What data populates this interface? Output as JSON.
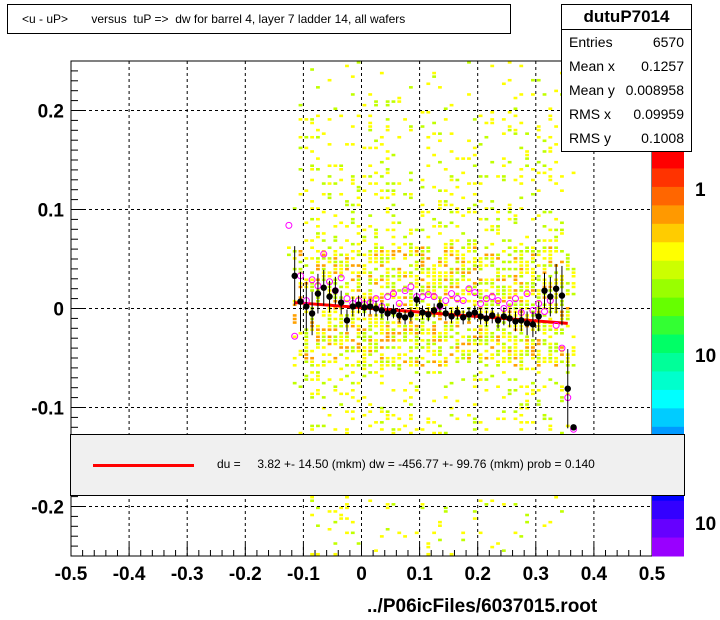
{
  "title": "<u - uP>       versus  tuP =>  dw for barrel 4, layer 7 ladder 14, all wafers",
  "stats": {
    "name": "dutuP7014",
    "rows": [
      {
        "label": "Entries",
        "value": "6570"
      },
      {
        "label": "Mean x",
        "value": "0.1257"
      },
      {
        "label": "Mean y",
        "value": "0.008958"
      },
      {
        "label": "RMS x",
        "value": "0.09959"
      },
      {
        "label": "RMS y",
        "value": "0.1008"
      }
    ]
  },
  "fit_legend": "du =     3.82 +- 14.50 (mkm) dw = -456.77 +- 99.76 (mkm) prob = 0.140",
  "file_label": "../P06icFiles/6037015.root",
  "palette_labels": [
    "1",
    "10",
    "10"
  ],
  "colors": {
    "scatter_yellow": "#ffff00",
    "scatter_green": "#c0ff00",
    "scatter_orange": "#ffa000",
    "profile_black": "#000000",
    "profile_magenta": "#ff00ff",
    "fit_red": "#ff0000"
  },
  "chart_data": {
    "type": "scatter",
    "title": "<u - uP>       versus  tuP =>  dw for barrel 4, layer 7 ladder 14, all wafers",
    "xlabel": "",
    "ylabel": "",
    "xlim": [
      -0.5,
      0.5
    ],
    "ylim": [
      -0.25,
      0.25
    ],
    "grid": true,
    "x_ticks": [
      -0.5,
      -0.4,
      -0.3,
      -0.2,
      -0.1,
      0,
      0.1,
      0.2,
      0.3,
      0.4,
      0.5
    ],
    "x_tick_labels": [
      "-0.5",
      "-0.4",
      "-0.3",
      "-0.2",
      "-0.1",
      "0",
      "0.1",
      "0.2",
      "0.3",
      "0.4",
      "0.5"
    ],
    "y_ticks": [
      0.2,
      0.1,
      0,
      -0.1,
      -0.2
    ],
    "y_tick_labels": [
      "0.2",
      "0.1",
      "0",
      "-0.1",
      "-0.2"
    ],
    "fit_line": {
      "x": [
        -0.115,
        0.355
      ],
      "y": [
        0.006,
        -0.015
      ]
    },
    "profile_black": {
      "name": "",
      "x": [
        -0.115,
        -0.105,
        -0.095,
        -0.085,
        -0.075,
        -0.065,
        -0.055,
        -0.045,
        -0.035,
        -0.025,
        -0.015,
        -0.005,
        0.005,
        0.015,
        0.025,
        0.035,
        0.045,
        0.055,
        0.065,
        0.075,
        0.085,
        0.095,
        0.105,
        0.115,
        0.125,
        0.135,
        0.145,
        0.155,
        0.165,
        0.175,
        0.185,
        0.195,
        0.205,
        0.215,
        0.225,
        0.235,
        0.245,
        0.255,
        0.265,
        0.275,
        0.285,
        0.295,
        0.305,
        0.315,
        0.325,
        0.335,
        0.345,
        0.355,
        0.365
      ],
      "y": [
        0.033,
        0.007,
        0.002,
        -0.005,
        0.015,
        0.021,
        0.012,
        0.018,
        0.006,
        -0.012,
        0.002,
        0.004,
        0.001,
        0.002,
        0.0,
        -0.002,
        -0.005,
        -0.003,
        -0.007,
        -0.009,
        -0.006,
        0.009,
        -0.004,
        -0.006,
        -0.002,
        0.003,
        -0.005,
        -0.008,
        -0.004,
        -0.009,
        -0.006,
        -0.004,
        -0.008,
        -0.01,
        -0.007,
        -0.012,
        -0.008,
        -0.01,
        -0.013,
        -0.012,
        -0.015,
        -0.016,
        -0.008,
        0.018,
        0.012,
        0.02,
        0.013,
        -0.081,
        -0.12
      ],
      "yerr": [
        0.03,
        0.03,
        0.025,
        0.022,
        0.02,
        0.018,
        0.016,
        0.014,
        0.012,
        0.011,
        0.01,
        0.009,
        0.009,
        0.008,
        0.008,
        0.008,
        0.007,
        0.007,
        0.007,
        0.007,
        0.007,
        0.007,
        0.007,
        0.007,
        0.007,
        0.007,
        0.007,
        0.007,
        0.007,
        0.007,
        0.007,
        0.007,
        0.008,
        0.008,
        0.008,
        0.008,
        0.009,
        0.009,
        0.01,
        0.011,
        0.012,
        0.013,
        0.015,
        0.018,
        0.02,
        0.025,
        0.03,
        0.04,
        0.0
      ]
    },
    "profile_magenta": {
      "name": "",
      "x": [
        -0.125,
        -0.115,
        -0.105,
        -0.095,
        -0.085,
        -0.075,
        -0.065,
        -0.055,
        -0.045,
        -0.035,
        -0.025,
        -0.015,
        -0.005,
        0.005,
        0.015,
        0.025,
        0.035,
        0.045,
        0.055,
        0.065,
        0.075,
        0.085,
        0.095,
        0.105,
        0.115,
        0.125,
        0.135,
        0.145,
        0.155,
        0.165,
        0.175,
        0.185,
        0.195,
        0.205,
        0.215,
        0.225,
        0.235,
        0.245,
        0.255,
        0.265,
        0.275,
        0.285,
        0.295,
        0.305,
        0.315,
        0.325,
        0.335,
        0.345,
        0.355,
        0.365
      ],
      "y": [
        0.084,
        -0.028,
        0.033,
        0.008,
        0.029,
        0.023,
        0.055,
        0.027,
        0.018,
        0.031,
        0.01,
        0.005,
        0.008,
        0.004,
        0.006,
        0.01,
        0.002,
        0.012,
        0.015,
        0.005,
        0.018,
        0.022,
        0.012,
        0.012,
        0.014,
        0.012,
        0.002,
        0.008,
        0.015,
        0.01,
        0.008,
        0.02,
        0.016,
        0.005,
        0.01,
        0.012,
        0.008,
        0.0,
        0.005,
        0.01,
        -0.004,
        0.015,
        -0.002,
        0.005,
        -0.003,
        0.008,
        -0.017,
        -0.04,
        -0.09,
        -0.122
      ]
    },
    "scatter_density": {
      "x_range": [
        -0.13,
        0.37
      ],
      "y_range": [
        -0.25,
        0.25
      ],
      "core_y_range": [
        -0.06,
        0.06
      ],
      "note_levels": [
        "yellow",
        "green",
        "orange"
      ]
    }
  }
}
